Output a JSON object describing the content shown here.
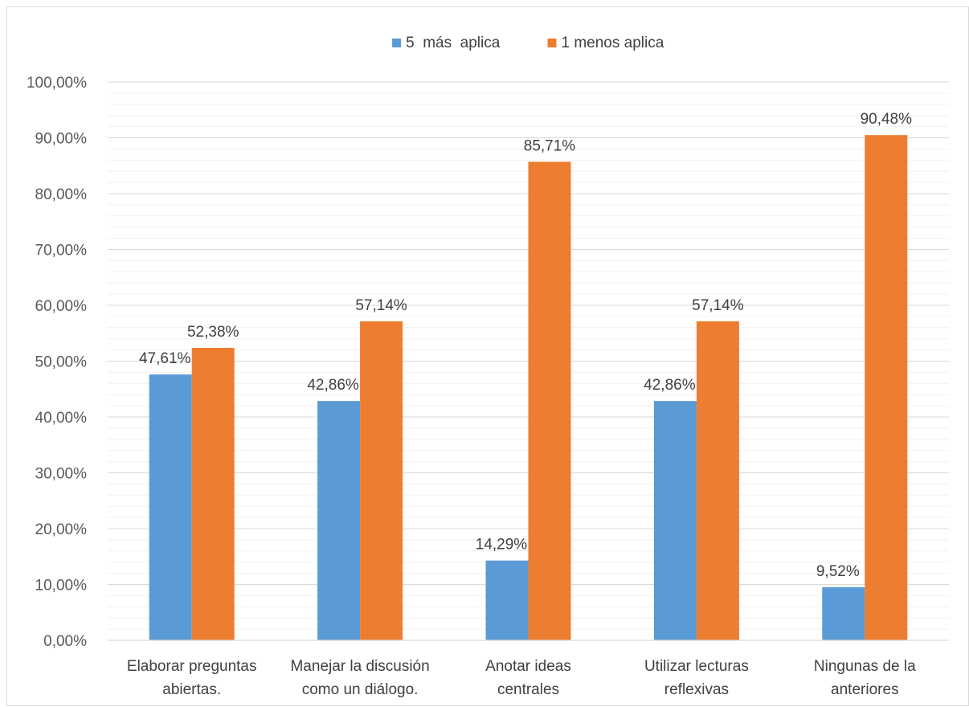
{
  "chart_data": {
    "type": "bar",
    "title": "",
    "xlabel": "",
    "ylabel": "",
    "categories": [
      [
        "Elaborar preguntas",
        "abiertas."
      ],
      [
        "Manejar la discusión",
        "como un diálogo."
      ],
      [
        "Anotar ideas",
        "centrales"
      ],
      [
        "Utilizar lecturas",
        "reflexivas"
      ],
      [
        "Ningunas de la",
        "anteriores"
      ]
    ],
    "series": [
      {
        "name": "5  más  aplica",
        "color": "#5b9bd5",
        "values": [
          47.61,
          42.86,
          14.29,
          42.86,
          9.52
        ],
        "labels": [
          "47,61%",
          "42,86%",
          "14,29%",
          "42,86%",
          "9,52%"
        ]
      },
      {
        "name": "1 menos aplica",
        "color": "#ed7d31",
        "values": [
          52.38,
          57.14,
          85.71,
          57.14,
          90.48
        ],
        "labels": [
          "52,38%",
          "57,14%",
          "85,71%",
          "57,14%",
          "90,48%"
        ]
      }
    ],
    "ylim": [
      0,
      100
    ],
    "yticks": [
      "0,00%",
      "10,00%",
      "20,00%",
      "30,00%",
      "40,00%",
      "50,00%",
      "60,00%",
      "70,00%",
      "80,00%",
      "90,00%",
      "100,00%"
    ],
    "grid": true,
    "legend_position": "top"
  }
}
